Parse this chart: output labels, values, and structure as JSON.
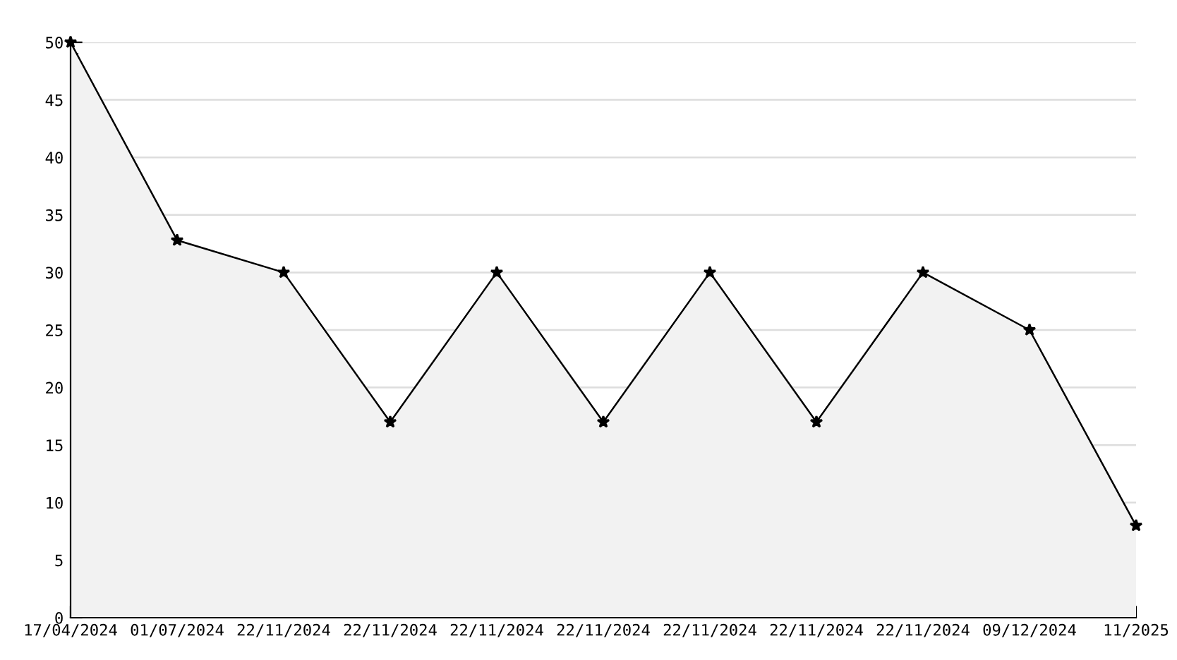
{
  "chart_data": {
    "type": "area",
    "categories": [
      "17/04/2024",
      "01/07/2024",
      "22/11/2024",
      "22/11/2024",
      "22/11/2024",
      "22/11/2024",
      "22/11/2024",
      "22/11/2024",
      "22/11/2024",
      "09/12/2024",
      "11/2025"
    ],
    "series": [
      {
        "color": "#000000",
        "values": [
          50,
          32.8,
          30,
          17,
          30,
          17,
          30,
          17,
          30,
          25,
          8
        ]
      }
    ],
    "ylim": [
      0,
      50
    ],
    "yticks": [
      0,
      5,
      10,
      15,
      20,
      25,
      30,
      35,
      40,
      45,
      50
    ],
    "grid": "y",
    "marker": "star",
    "line_style": "solid"
  }
}
